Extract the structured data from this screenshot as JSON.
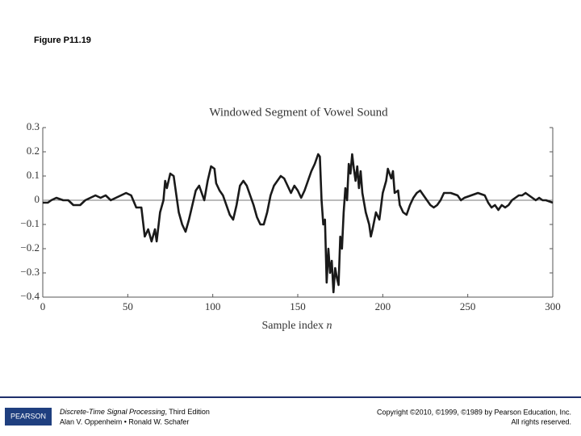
{
  "figure_label": "Figure P11.19",
  "chart_data": {
    "type": "line",
    "title": "Windowed Segment of Vowel Sound",
    "xlabel": "Sample index ",
    "xlabel_var": "n",
    "color": "#1a1a1a",
    "x": [
      0,
      3,
      5,
      8,
      12,
      15,
      18,
      22,
      25,
      28,
      31,
      34,
      37,
      40,
      43,
      46,
      49,
      52,
      55,
      57,
      58,
      60,
      62,
      64,
      66,
      67,
      69,
      71,
      72,
      73,
      75,
      77,
      78,
      80,
      82,
      84,
      86,
      88,
      90,
      92,
      95,
      97,
      99,
      101,
      102,
      104,
      106,
      108,
      110,
      112,
      114,
      116,
      118,
      120,
      122,
      124,
      126,
      128,
      130,
      132,
      134,
      136,
      138,
      140,
      142,
      144,
      146,
      148,
      150,
      152,
      154,
      156,
      158,
      160,
      162,
      163,
      164,
      165,
      166,
      167,
      168,
      169,
      170,
      171,
      172,
      173,
      174,
      175,
      176,
      177,
      178,
      179,
      180,
      181,
      182,
      183,
      184,
      185,
      186,
      187,
      188,
      190,
      192,
      193,
      194,
      196,
      198,
      200,
      202,
      203,
      205,
      206,
      207,
      209,
      210,
      212,
      214,
      216,
      218,
      220,
      222,
      224,
      226,
      228,
      230,
      232,
      234,
      236,
      240,
      244,
      246,
      248,
      252,
      256,
      260,
      262,
      264,
      266,
      268,
      270,
      272,
      274,
      276,
      278,
      280,
      282,
      284,
      286,
      288,
      290,
      292,
      294,
      296,
      300
    ],
    "values": [
      -0.01,
      -0.01,
      0.0,
      0.01,
      0.0,
      0.0,
      -0.02,
      -0.02,
      0.0,
      0.01,
      0.02,
      0.01,
      0.02,
      0.0,
      0.01,
      0.02,
      0.03,
      0.02,
      -0.03,
      -0.03,
      -0.03,
      -0.15,
      -0.12,
      -0.17,
      -0.12,
      -0.17,
      -0.05,
      0.0,
      0.08,
      0.05,
      0.11,
      0.1,
      0.05,
      -0.05,
      -0.1,
      -0.13,
      -0.08,
      -0.02,
      0.04,
      0.06,
      0.0,
      0.08,
      0.14,
      0.13,
      0.07,
      0.04,
      0.02,
      -0.02,
      -0.06,
      -0.08,
      -0.02,
      0.06,
      0.08,
      0.06,
      0.02,
      -0.02,
      -0.07,
      -0.1,
      -0.1,
      -0.05,
      0.02,
      0.06,
      0.08,
      0.1,
      0.09,
      0.06,
      0.03,
      0.06,
      0.04,
      0.01,
      0.04,
      0.08,
      0.12,
      0.15,
      0.19,
      0.18,
      0.0,
      -0.1,
      -0.08,
      -0.34,
      -0.2,
      -0.3,
      -0.25,
      -0.38,
      -0.28,
      -0.32,
      -0.35,
      -0.15,
      -0.2,
      -0.05,
      0.05,
      0.0,
      0.15,
      0.11,
      0.19,
      0.13,
      0.08,
      0.14,
      0.05,
      0.12,
      0.03,
      -0.05,
      -0.1,
      -0.15,
      -0.12,
      -0.05,
      -0.08,
      0.03,
      0.08,
      0.13,
      0.09,
      0.12,
      0.03,
      0.04,
      -0.02,
      -0.05,
      -0.06,
      -0.02,
      0.01,
      0.03,
      0.04,
      0.02,
      0.0,
      -0.02,
      -0.03,
      -0.02,
      0.0,
      0.03,
      0.03,
      0.02,
      0.0,
      0.01,
      0.02,
      0.03,
      0.02,
      -0.01,
      -0.03,
      -0.02,
      -0.04,
      -0.02,
      -0.03,
      -0.02,
      0.0,
      0.01,
      0.02,
      0.02,
      0.03,
      0.02,
      0.01,
      0.0,
      0.01,
      0.0,
      0.0,
      -0.01
    ],
    "xlim": [
      0,
      300
    ],
    "xticks": [
      0,
      50,
      100,
      150,
      200,
      250,
      300
    ],
    "ylim": [
      -0.4,
      0.3
    ],
    "yticks": [
      0.3,
      0.2,
      0.1,
      0,
      {
        "value": -0.1,
        "label": "−0.1"
      },
      {
        "value": -0.2,
        "label": "−0.2"
      },
      {
        "value": -0.3,
        "label": "−0.3"
      },
      {
        "value": -0.4,
        "label": "−0.4"
      }
    ]
  },
  "footer": {
    "logo": "PEARSON",
    "book_title": "Discrete-Time Signal Processing",
    "edition": ", Third Edition",
    "authors": "Alan V. Oppenheim • Ronald W. Schafer",
    "copyright": "Copyright ©2010, ©1999, ©1989 by Pearson Education, Inc.",
    "rights": "All rights reserved."
  }
}
